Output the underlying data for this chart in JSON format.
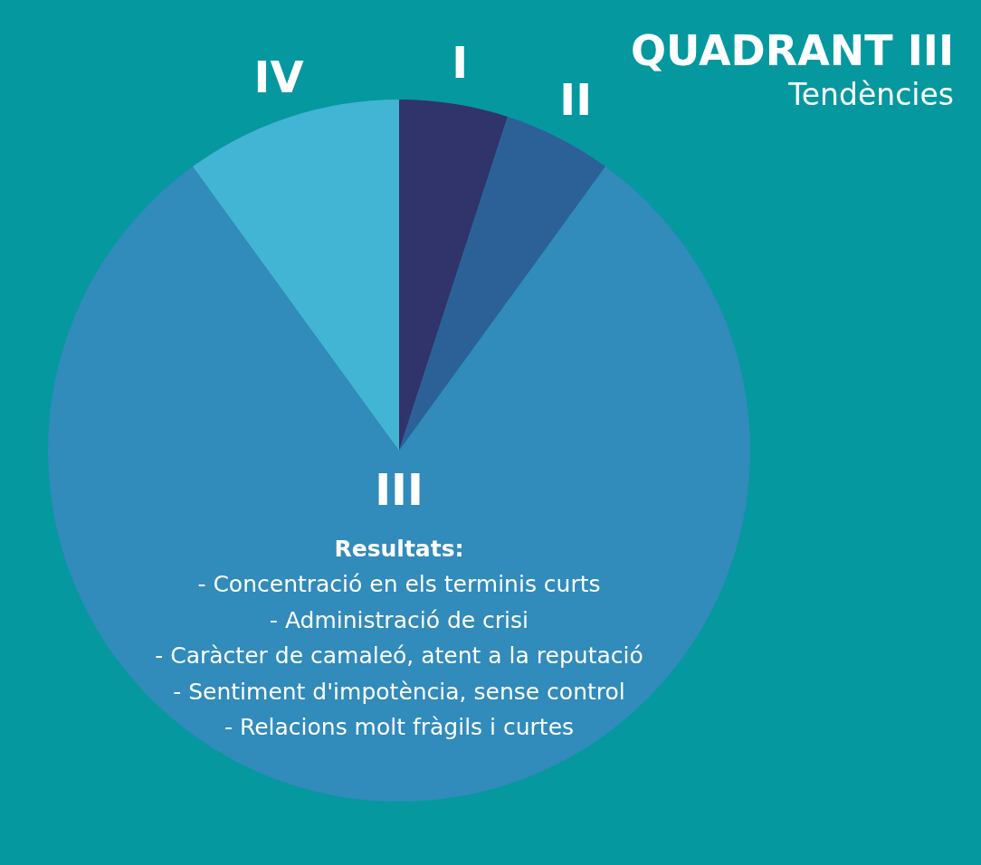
{
  "chart_data": {
    "type": "pie",
    "title": "QUADRANT III",
    "subtitle": "Tendències",
    "categories": [
      "I",
      "II",
      "III",
      "IV"
    ],
    "values": [
      5,
      5,
      80,
      10
    ],
    "colors": [
      "#31336b",
      "#2c6198",
      "#318bbb",
      "#42b5d4"
    ],
    "legend": false,
    "annotations": [
      "Resultats:",
      "- Concentració en els terminis curts",
      "- Administració de crisi",
      "- Caràcter de camaleó, atent a la reputació",
      "- Sentiment d'impotència, sense control",
      "- Relacions molt fràgils i curtes"
    ]
  }
}
